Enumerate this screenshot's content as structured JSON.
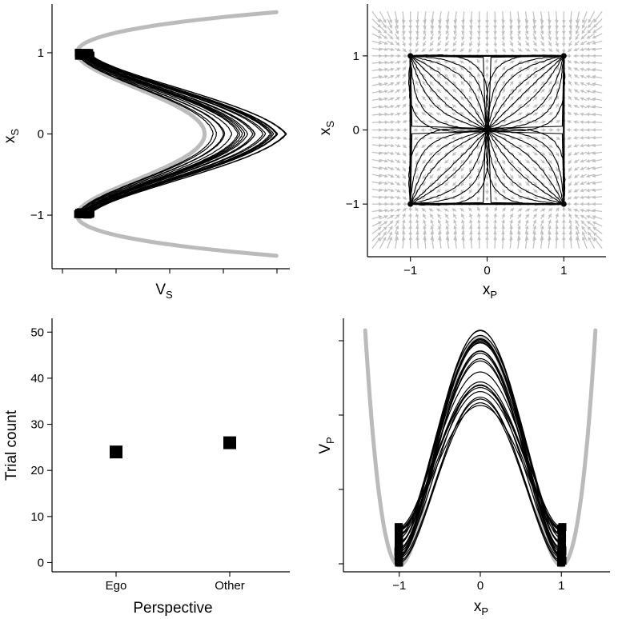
{
  "chart_data": [
    {
      "id": "top-left",
      "type": "line",
      "xlabel": "V",
      "xlabel_sub": "S",
      "ylabel": "x",
      "ylabel_sub": "S",
      "x_ticks": [
        -4,
        -3,
        -2,
        -1,
        0
      ],
      "x_tick_labels": [],
      "y_ticks": [
        -1,
        0,
        1
      ],
      "y_tick_labels": [
        "−1",
        "0",
        "1"
      ],
      "xlim": [
        -4.2,
        0.2
      ],
      "ylim": [
        -1.6,
        1.6
      ],
      "potential_curve": {
        "color": "#bbbbbb",
        "form": "V = -x^2 + 0.5 x^4 (sideways double-well)"
      },
      "trajectory_color": "#000000",
      "trajectory_count": 24,
      "start_markers_y": [
        1,
        -1
      ]
    },
    {
      "id": "top-right",
      "type": "scatter",
      "xlabel": "x",
      "xlabel_sub": "P",
      "ylabel": "x",
      "ylabel_sub": "S",
      "x_ticks": [
        -1,
        0,
        1
      ],
      "x_tick_labels": [
        "−1",
        "0",
        "1"
      ],
      "y_ticks": [
        -1,
        0,
        1
      ],
      "y_tick_labels": [
        "−1",
        "0",
        "1"
      ],
      "xlim": [
        -1.55,
        1.55
      ],
      "ylim": [
        -1.7,
        1.7
      ],
      "vector_field_color": "#c0c0c0",
      "trajectory_color": "#000000",
      "fixed_points": [
        [
          -1,
          -1
        ],
        [
          -1,
          1
        ],
        [
          1,
          -1
        ],
        [
          1,
          1
        ],
        [
          0,
          0
        ]
      ]
    },
    {
      "id": "bottom-left",
      "type": "scatter",
      "xlabel": "Perspective",
      "ylabel": "Trial count",
      "categories": [
        "Ego",
        "Other"
      ],
      "values": [
        24,
        26
      ],
      "y_ticks": [
        0,
        10,
        20,
        30,
        40,
        50
      ],
      "y_tick_labels": [
        "0",
        "10",
        "20",
        "30",
        "40",
        "50"
      ],
      "ylim": [
        -2,
        53
      ],
      "marker": "square",
      "marker_color": "#000000"
    },
    {
      "id": "bottom-right",
      "type": "line",
      "xlabel": "x",
      "xlabel_sub": "P",
      "ylabel": "V",
      "ylabel_sub": "P",
      "x_ticks": [
        -1,
        0,
        1
      ],
      "x_tick_labels": [
        "−1",
        "0",
        "1"
      ],
      "y_ticks": [
        0,
        1,
        2,
        3
      ],
      "y_tick_labels": [],
      "xlim": [
        -1.6,
        1.6
      ],
      "ylim": [
        -0.05,
        3.15
      ],
      "potential_curve": {
        "color": "#bbbbbb",
        "form": "V = 1 - 2x^2 + x^4 (double-well)"
      },
      "trajectory_color": "#000000",
      "trajectory_count": 24,
      "end_markers_x": [
        -1,
        1
      ]
    }
  ]
}
